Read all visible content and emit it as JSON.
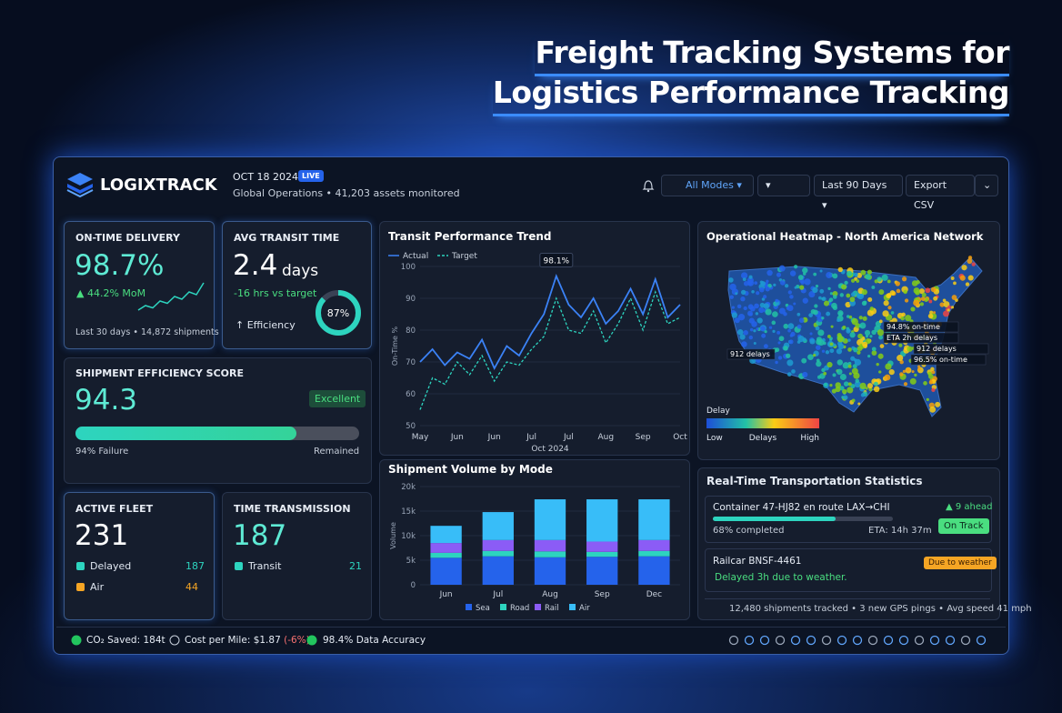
{
  "title": [
    "Freight Tracking Systems for",
    "Logistics Performance Tracking"
  ],
  "header": {
    "brand": "LOGIXTRACK",
    "date": "OCT 18 2024 ·",
    "live": "LIVE",
    "subtitle": "Global Operations • 41,203 assets monitored",
    "filters": [
      "All Modes",
      "Last 90 Days",
      "Export CSV"
    ]
  },
  "on_time": {
    "label": "ON-TIME DELIVERY",
    "value": "98.7%",
    "change": "▲ 44.2% MoM",
    "footer": "Last 30 days • 14,872 shipments",
    "sparkline": [
      2,
      3,
      2.5,
      4,
      3.5,
      5,
      4.4,
      6,
      5.4,
      8
    ]
  },
  "transit": {
    "label": "AVG TRANSIT TIME",
    "value": "2.4",
    "unit": "days",
    "delta": "-16 hrs vs target",
    "note": "↑ Efficiency",
    "donut": 87,
    "donut_label": "87%"
  },
  "efficiency": {
    "label": "SHIPMENT EFFICIENCY SCORE",
    "value": "94.3",
    "badge": "Excellent",
    "bar_percent": 78,
    "left": "94% Failure",
    "right": "Remained"
  },
  "fleet": {
    "label": "ACTIVE FLEET",
    "value": "231",
    "rows": [
      {
        "name": "Delayed",
        "value": "187",
        "color": "#2dd4bf"
      },
      {
        "name": "Air",
        "value": "44",
        "color": "#f5a524"
      }
    ]
  },
  "transmission": {
    "label": "TIME TRANSMISSION",
    "value": "187",
    "rows": [
      {
        "name": "Transit",
        "value": "21",
        "color": "#2dd4bf"
      }
    ]
  },
  "trend_chart": {
    "type": "line",
    "title": "Transit Performance Trend",
    "ylabel": "On-Time %",
    "xlabel": "Oct 2024",
    "annotation": "98.1%",
    "categories": [
      "May",
      null,
      null,
      "Jun",
      null,
      null,
      "Jun",
      null,
      null,
      "Jul",
      null,
      null,
      "Jul",
      null,
      null,
      "Aug",
      null,
      null,
      "Sep",
      null,
      null,
      "Oct"
    ],
    "series": [
      {
        "name": "Actual",
        "color": "#3b82f6",
        "dash": false,
        "values": [
          70,
          74,
          69,
          73,
          71,
          77,
          68,
          75,
          72,
          79,
          85,
          97,
          88,
          84,
          90,
          82,
          86,
          93,
          85,
          96,
          84,
          88
        ]
      },
      {
        "name": "Target",
        "color": "#2dd4bf",
        "dash": true,
        "values": [
          55,
          65,
          63,
          70,
          66,
          72,
          64,
          70,
          69,
          74,
          78,
          90,
          80,
          79,
          86,
          76,
          82,
          90,
          80,
          92,
          82,
          84
        ]
      }
    ],
    "ylim": [
      50,
      100
    ],
    "yticks": [
      50,
      60,
      70,
      80,
      90,
      100
    ],
    "grid": true
  },
  "volume_chart": {
    "type": "bar",
    "stacked": true,
    "title": "Shipment Volume by Mode",
    "ylabel": "Volume",
    "categories": [
      "Jun",
      "Jul",
      "Aug",
      "Sep",
      "Dec"
    ],
    "series": [
      {
        "name": "Sea",
        "color": "#2563eb",
        "values": [
          5500,
          5800,
          5600,
          5700,
          5800
        ]
      },
      {
        "name": "Road",
        "color": "#2dd4bf",
        "values": [
          1000,
          1100,
          1200,
          1000,
          1100
        ]
      },
      {
        "name": "Rail",
        "color": "#8b5cf6",
        "values": [
          2000,
          2200,
          2300,
          2100,
          2200
        ]
      },
      {
        "name": "Air",
        "color": "#38bdf8",
        "values": [
          3500,
          5700,
          8300,
          8600,
          8300
        ]
      }
    ],
    "ylim": [
      0,
      20000
    ],
    "yticks": [
      0,
      {
        "value": 5000,
        "label": "5k"
      },
      {
        "value": 10000,
        "label": "10k"
      },
      {
        "value": 15000,
        "label": "15k"
      },
      {
        "value": 20000,
        "label": "20k"
      }
    ],
    "grid": true
  },
  "heatmap": {
    "title": "Operational Heatmap - North America Network",
    "callouts": [
      "94.8% on-time",
      "ETA 2h delays",
      "912 delays",
      "96.5% on-time",
      "912 delays"
    ],
    "legend": {
      "title": "Delay",
      "low": "Low",
      "mid": "Delays",
      "high": "High"
    }
  },
  "stats": {
    "title": "Real-Time Transportation Statistics",
    "items": [
      {
        "title": "Container 47-HJ82 en route LAX→CHI",
        "badge": "▲ 9 ahead",
        "progress": 68,
        "progress_label": "68% completed",
        "eta": "ETA: 14h 37m",
        "status": "On Track"
      },
      {
        "title": "Railcar BNSF-4461",
        "status": "Due to weather",
        "note": "Delayed 3h due to weather."
      }
    ],
    "summary": "12,480 shipments tracked • 3 new GPS pings • Avg speed 41 mph"
  },
  "footer": {
    "co2": "CO₂ Saved: 184t",
    "cost": "Cost per Mile: $1.87",
    "cost_change": "(-6%)",
    "accuracy": "98.4% Data Accuracy"
  }
}
